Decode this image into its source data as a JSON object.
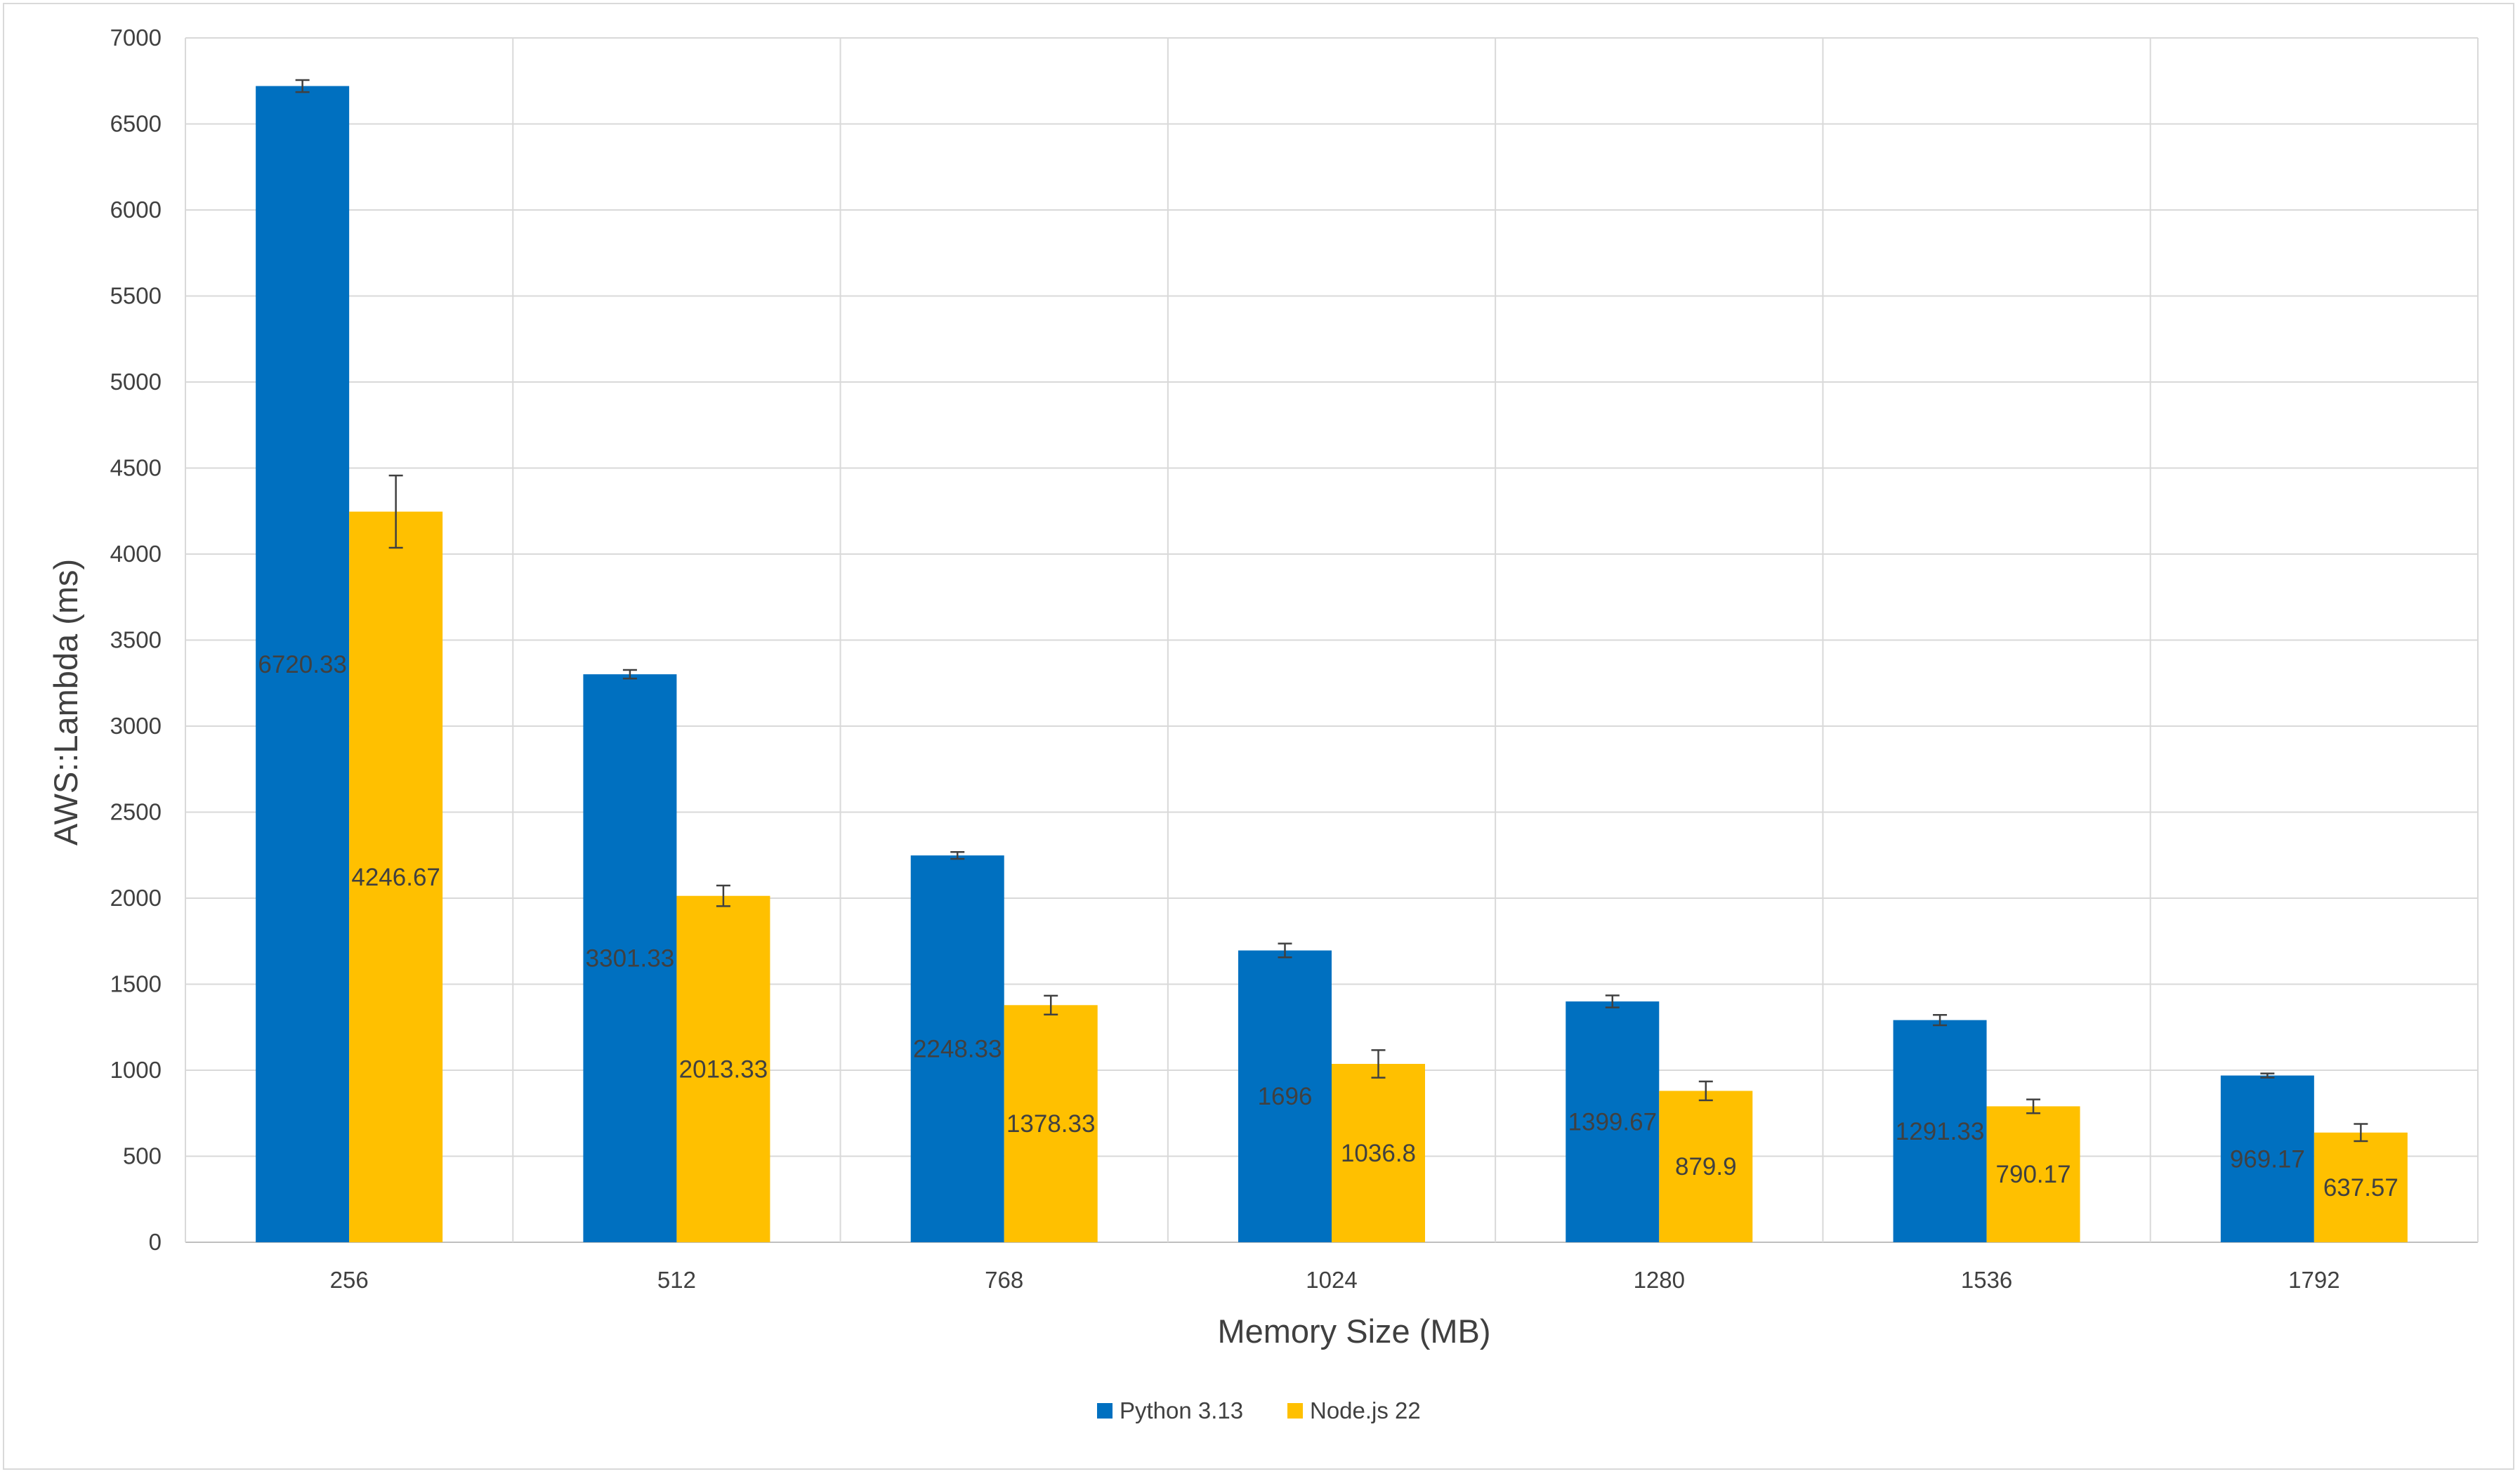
{
  "chart_data": {
    "type": "bar",
    "title": "",
    "xlabel": "Memory Size (MB)",
    "ylabel": "AWS::Lambda (ms)",
    "ylim": [
      0,
      7000
    ],
    "ytick_step": 500,
    "grid": true,
    "legend_position": "bottom",
    "categories": [
      "256",
      "512",
      "768",
      "1024",
      "1280",
      "1536",
      "1792"
    ],
    "series": [
      {
        "name": "Python 3.13",
        "color": "#0070c0",
        "values": [
          6720.33,
          3301.33,
          2248.33,
          1696,
          1399.67,
          1291.33,
          969.17
        ],
        "labels": [
          "6720.33",
          "3301.33",
          "2248.33",
          "1696",
          "1399.67",
          "1291.33",
          "969.17"
        ],
        "errors": [
          35,
          25,
          20,
          40,
          35,
          30,
          12
        ]
      },
      {
        "name": "Node.js 22",
        "color": "#ffc000",
        "values": [
          4246.67,
          2013.33,
          1378.33,
          1036.8,
          879.9,
          790.17,
          637.57
        ],
        "labels": [
          "4246.67",
          "2013.33",
          "1378.33",
          "1036.8",
          "879.9",
          "790.17",
          "637.57"
        ],
        "errors": [
          210,
          60,
          55,
          80,
          55,
          40,
          50
        ]
      }
    ]
  }
}
